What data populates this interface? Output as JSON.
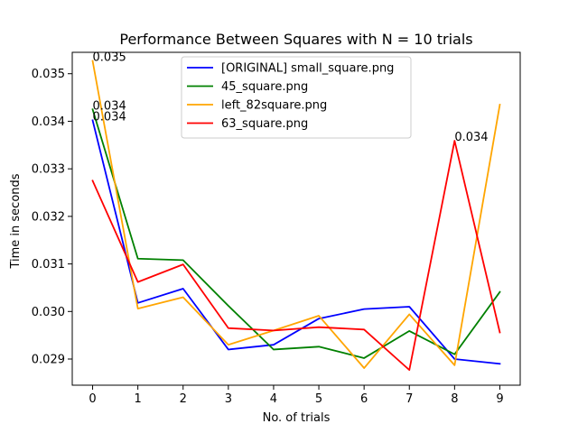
{
  "chart_data": {
    "type": "line",
    "title": "Performance Between Squares with N = 10 trials",
    "xlabel": "No. of trials",
    "ylabel": "Time in seconds",
    "x": [
      0,
      1,
      2,
      3,
      4,
      5,
      6,
      7,
      8,
      9
    ],
    "xticks": [
      "0",
      "1",
      "2",
      "3",
      "4",
      "5",
      "6",
      "7",
      "8",
      "9"
    ],
    "yticks": [
      "0.029",
      "0.030",
      "0.031",
      "0.032",
      "0.033",
      "0.034",
      "0.035"
    ],
    "yticks_values": [
      0.029,
      0.03,
      0.031,
      0.032,
      0.033,
      0.034,
      0.035
    ],
    "xlim": [
      -0.45,
      9.45
    ],
    "ylim": [
      0.02845,
      0.03545
    ],
    "grid": false,
    "legend_position": "top-center",
    "series": [
      {
        "name": "[ORIGINAL] small_square.png",
        "color": "#0000ff",
        "values": [
          0.03402,
          0.03018,
          0.03048,
          0.0292,
          0.0293,
          0.02985,
          0.03005,
          0.0301,
          0.029,
          0.0289
        ]
      },
      {
        "name": "45_square.png",
        "color": "#008000",
        "values": [
          0.03425,
          0.03111,
          0.03108,
          0.03012,
          0.0292,
          0.02926,
          0.02902,
          0.02959,
          0.0291,
          0.03041
        ]
      },
      {
        "name": "left_82square.png",
        "color": "#ffa500",
        "values": [
          0.03527,
          0.03006,
          0.0303,
          0.0293,
          0.0296,
          0.02991,
          0.02881,
          0.02994,
          0.02887,
          0.03435
        ]
      },
      {
        "name": "63_square.png",
        "color": "#ff0000",
        "values": [
          0.03275,
          0.03062,
          0.03099,
          0.02965,
          0.0296,
          0.02967,
          0.02962,
          0.02877,
          0.03359,
          0.02956
        ]
      }
    ],
    "annotations": [
      {
        "text": "0.035",
        "x": 0,
        "y": 0.03527
      },
      {
        "text": "0.034",
        "x": 0,
        "y": 0.03425
      },
      {
        "text": "0.034",
        "x": 0,
        "y": 0.03402
      },
      {
        "text": "0.034",
        "x": 8,
        "y": 0.03359
      }
    ]
  }
}
